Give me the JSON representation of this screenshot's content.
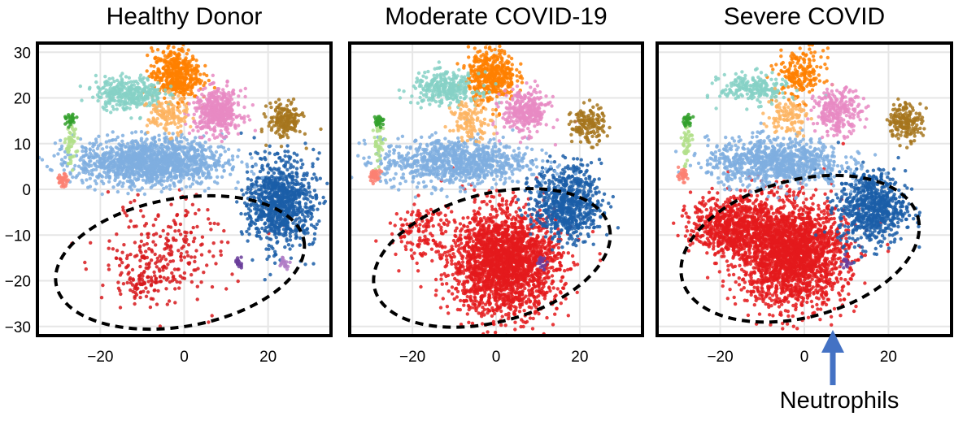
{
  "figure": {
    "annotation": {
      "label": "Neutrophils",
      "arrow_color": "#4472C4"
    }
  },
  "chart_data": [
    {
      "type": "scatter",
      "title": "Healthy Donor",
      "xlabel": "",
      "ylabel": "",
      "xlim": [
        -35,
        35
      ],
      "ylim": [
        -32,
        32
      ],
      "xticks": [
        "−20",
        "0",
        "20"
      ],
      "xtick_values": [
        -20,
        0,
        20
      ],
      "yticks": [
        "30",
        "20",
        "10",
        "0",
        "−10",
        "−20",
        "−30"
      ],
      "ytick_values": [
        30,
        20,
        10,
        0,
        -10,
        -20,
        -30
      ],
      "show_y_ticks": true,
      "grid": true,
      "neutrophil_ellipse": {
        "cx": -1,
        "cy": -16,
        "rx": 30,
        "ry": 14,
        "angle_deg": -10
      },
      "clusters": [
        {
          "color": "#D7191C",
          "cx": -6,
          "cy": -14,
          "sx": 9,
          "sy": 6,
          "n": 330,
          "shape": "sparse-neutrophils"
        },
        {
          "color": "#1B5EA8",
          "cx": 23,
          "cy": -3,
          "sx": 5,
          "sy": 6,
          "n": 900
        },
        {
          "color": "#7FAEDF",
          "cx": -8,
          "cy": 6,
          "sx": 11,
          "sy": 3.2,
          "n": 1400
        },
        {
          "color": "#FF8000",
          "cx": -2,
          "cy": 25,
          "sx": 3.5,
          "sy": 3.5,
          "n": 450
        },
        {
          "color": "#86D1C5",
          "cx": -13,
          "cy": 21,
          "sx": 5,
          "sy": 2.2,
          "n": 350
        },
        {
          "color": "#E78AC3",
          "cx": 8,
          "cy": 17,
          "sx": 3.5,
          "sy": 3,
          "n": 450
        },
        {
          "color": "#A6761D",
          "cx": 24,
          "cy": 15,
          "sx": 2.5,
          "sy": 2.5,
          "n": 180
        },
        {
          "color": "#FDB462",
          "cx": -4,
          "cy": 16,
          "sx": 3,
          "sy": 2.5,
          "n": 130
        },
        {
          "color": "#B2DF8A",
          "cx": -27,
          "cy": 10,
          "sx": 0.8,
          "sy": 3,
          "n": 50
        },
        {
          "color": "#33A02C",
          "cx": -27,
          "cy": 15,
          "sx": 0.8,
          "sy": 0.8,
          "n": 25
        },
        {
          "color": "#FB8072",
          "cx": -29,
          "cy": 2,
          "sx": 0.8,
          "sy": 0.8,
          "n": 35
        },
        {
          "color": "#6A3D9A",
          "cx": 13,
          "cy": -16,
          "sx": 0.8,
          "sy": 0.8,
          "n": 18
        },
        {
          "color": "#B07CC6",
          "cx": 24,
          "cy": -16,
          "sx": 0.8,
          "sy": 0.8,
          "n": 18
        }
      ]
    },
    {
      "type": "scatter",
      "title": "Moderate COVID-19",
      "xlabel": "",
      "ylabel": "",
      "xlim": [
        -35,
        35
      ],
      "ylim": [
        -32,
        32
      ],
      "xticks": [
        "−20",
        "0",
        "20"
      ],
      "xtick_values": [
        -20,
        0,
        20
      ],
      "yticks": [],
      "show_y_ticks": false,
      "grid": true,
      "neutrophil_ellipse": {
        "cx": -1,
        "cy": -15,
        "rx": 29,
        "ry": 14,
        "angle_deg": -15
      },
      "clusters": [
        {
          "color": "#E41A1C",
          "cx": 2,
          "cy": -16,
          "sx": 8,
          "sy": 7,
          "n": 2200
        },
        {
          "color": "#E41A1C",
          "cx": -18,
          "cy": -9,
          "sx": 5,
          "sy": 4,
          "n": 130
        },
        {
          "color": "#1B5EA8",
          "cx": 17,
          "cy": -3,
          "sx": 5,
          "sy": 5,
          "n": 700
        },
        {
          "color": "#7FAEDF",
          "cx": -10,
          "cy": 6,
          "sx": 11,
          "sy": 3.2,
          "n": 900
        },
        {
          "color": "#FF8000",
          "cx": -1,
          "cy": 25,
          "sx": 3.5,
          "sy": 3.5,
          "n": 450
        },
        {
          "color": "#86D1C5",
          "cx": -12,
          "cy": 22,
          "sx": 5,
          "sy": 2.2,
          "n": 300
        },
        {
          "color": "#E78AC3",
          "cx": 7,
          "cy": 17,
          "sx": 3.5,
          "sy": 3,
          "n": 300
        },
        {
          "color": "#A6761D",
          "cx": 22,
          "cy": 14,
          "sx": 2.5,
          "sy": 2.5,
          "n": 150
        },
        {
          "color": "#FDB462",
          "cx": -6,
          "cy": 15,
          "sx": 3,
          "sy": 2.5,
          "n": 120
        },
        {
          "color": "#B2DF8A",
          "cx": -28,
          "cy": 10,
          "sx": 0.8,
          "sy": 3,
          "n": 40
        },
        {
          "color": "#33A02C",
          "cx": -28,
          "cy": 15,
          "sx": 0.8,
          "sy": 0.8,
          "n": 25
        },
        {
          "color": "#FB8072",
          "cx": -29,
          "cy": 3,
          "sx": 0.8,
          "sy": 0.8,
          "n": 35
        },
        {
          "color": "#6A3D9A",
          "cx": 11,
          "cy": -16,
          "sx": 0.8,
          "sy": 0.8,
          "n": 18
        }
      ]
    },
    {
      "type": "scatter",
      "title": "Severe COVID",
      "xlabel": "",
      "ylabel": "",
      "xlim": [
        -35,
        35
      ],
      "ylim": [
        -32,
        32
      ],
      "xticks": [
        "−20",
        "0",
        "20"
      ],
      "xtick_values": [
        -20,
        0,
        20
      ],
      "yticks": [],
      "show_y_ticks": false,
      "grid": true,
      "neutrophil_ellipse": {
        "cx": -1,
        "cy": -13,
        "rx": 29,
        "ry": 15,
        "angle_deg": -15
      },
      "clusters": [
        {
          "color": "#E41A1C",
          "cx": -3,
          "cy": -14,
          "sx": 8,
          "sy": 7,
          "n": 2200
        },
        {
          "color": "#E41A1C",
          "cx": -17,
          "cy": -8,
          "sx": 6,
          "sy": 4,
          "n": 700
        },
        {
          "color": "#1B5EA8",
          "cx": 16,
          "cy": -4,
          "sx": 5,
          "sy": 5,
          "n": 700
        },
        {
          "color": "#7FAEDF",
          "cx": -7,
          "cy": 6,
          "sx": 10,
          "sy": 3.2,
          "n": 900
        },
        {
          "color": "#FF8000",
          "cx": -1,
          "cy": 25,
          "sx": 3.5,
          "sy": 3.5,
          "n": 200
        },
        {
          "color": "#86D1C5",
          "cx": -12,
          "cy": 22,
          "sx": 5,
          "sy": 2,
          "n": 220
        },
        {
          "color": "#E78AC3",
          "cx": 8,
          "cy": 17,
          "sx": 3.5,
          "sy": 3,
          "n": 250
        },
        {
          "color": "#A6761D",
          "cx": 24,
          "cy": 15,
          "sx": 2.5,
          "sy": 2.5,
          "n": 180
        },
        {
          "color": "#FDB462",
          "cx": -4,
          "cy": 16,
          "sx": 3,
          "sy": 2.5,
          "n": 110
        },
        {
          "color": "#B2DF8A",
          "cx": -28,
          "cy": 10,
          "sx": 0.8,
          "sy": 3,
          "n": 40
        },
        {
          "color": "#33A02C",
          "cx": -28,
          "cy": 15,
          "sx": 0.8,
          "sy": 0.8,
          "n": 25
        },
        {
          "color": "#FB8072",
          "cx": -29,
          "cy": 3,
          "sx": 0.8,
          "sy": 0.8,
          "n": 35
        },
        {
          "color": "#6A3D9A",
          "cx": 10,
          "cy": -16,
          "sx": 0.8,
          "sy": 0.8,
          "n": 18
        }
      ]
    }
  ]
}
